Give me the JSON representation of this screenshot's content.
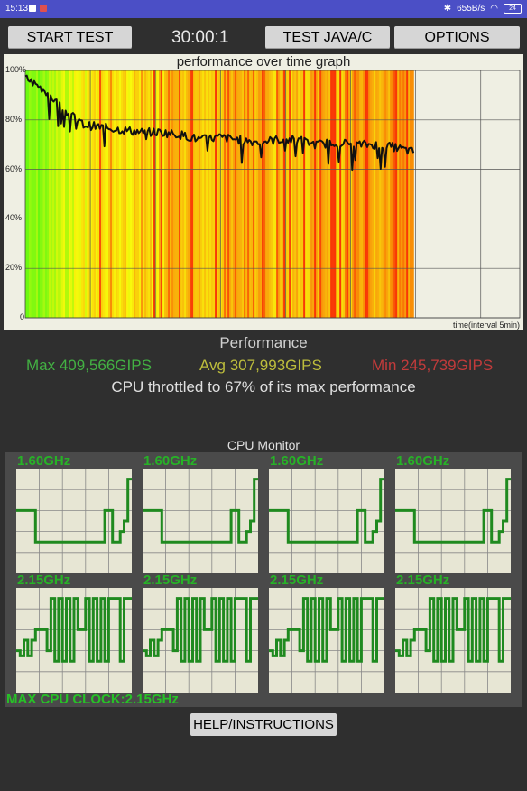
{
  "status_bar": {
    "time": "15:13",
    "net_speed": "655B/s",
    "battery": "24"
  },
  "toolbar": {
    "start_label": "START TEST",
    "timer": "30:00:1",
    "java_label": "TEST JAVA/C",
    "options_label": "OPTIONS"
  },
  "graph": {
    "title": "performance over time graph",
    "x_label": "time(interval 5min)",
    "y_ticks": [
      "100%",
      "80%",
      "60%",
      "40%",
      "20%",
      "0"
    ]
  },
  "chart_data": {
    "type": "line",
    "title": "performance over time graph",
    "xlabel": "time(interval 5min)",
    "ylim": [
      0,
      100
    ],
    "grid": true,
    "x_interval_minutes": 5,
    "x": [
      0,
      0.05,
      0.1,
      0.15,
      0.2,
      0.25,
      0.3,
      0.35,
      0.4,
      0.45,
      0.5,
      0.55,
      0.6,
      0.65,
      0.7,
      0.75,
      0.8,
      0.85,
      0.9,
      0.95,
      1.0
    ],
    "values": [
      97,
      92,
      84,
      78,
      77,
      76,
      75,
      75,
      74,
      72,
      73,
      72,
      71,
      72,
      72,
      70,
      71,
      70,
      70,
      69,
      67
    ]
  },
  "performance": {
    "title": "Performance",
    "max": "Max 409,566GIPS",
    "avg": "Avg 307,993GIPS",
    "min": "Min 245,739GIPS",
    "throttle": "CPU throttled to 67% of its max performance",
    "colors": {
      "max": "#43b143",
      "avg": "#bdbd3c",
      "min": "#c23b3b"
    }
  },
  "cpu_monitor": {
    "title": "CPU Monitor",
    "cores": [
      {
        "freq": "1.60GHz",
        "pattern": [
          0.6,
          0.6,
          0.6,
          0.6,
          0.6,
          0.3,
          0.3,
          0.3,
          0.3,
          0.3,
          0.3,
          0.3,
          0.3,
          0.3,
          0.3,
          0.3,
          0.3,
          0.3,
          0.3,
          0.3,
          0.3,
          0.3,
          0.3,
          0.6,
          0.6,
          0.3,
          0.3,
          0.4,
          0.5,
          0.9
        ]
      },
      {
        "freq": "1.60GHz",
        "pattern": [
          0.6,
          0.6,
          0.6,
          0.6,
          0.6,
          0.3,
          0.3,
          0.3,
          0.3,
          0.3,
          0.3,
          0.3,
          0.3,
          0.3,
          0.3,
          0.3,
          0.3,
          0.3,
          0.3,
          0.3,
          0.3,
          0.3,
          0.3,
          0.6,
          0.6,
          0.3,
          0.3,
          0.4,
          0.5,
          0.9
        ]
      },
      {
        "freq": "1.60GHz",
        "pattern": [
          0.6,
          0.6,
          0.6,
          0.6,
          0.6,
          0.3,
          0.3,
          0.3,
          0.3,
          0.3,
          0.3,
          0.3,
          0.3,
          0.3,
          0.3,
          0.3,
          0.3,
          0.3,
          0.3,
          0.3,
          0.3,
          0.3,
          0.3,
          0.6,
          0.6,
          0.3,
          0.3,
          0.4,
          0.5,
          0.9
        ]
      },
      {
        "freq": "1.60GHz",
        "pattern": [
          0.6,
          0.6,
          0.6,
          0.6,
          0.6,
          0.3,
          0.3,
          0.3,
          0.3,
          0.3,
          0.3,
          0.3,
          0.3,
          0.3,
          0.3,
          0.3,
          0.3,
          0.3,
          0.3,
          0.3,
          0.3,
          0.3,
          0.3,
          0.6,
          0.6,
          0.3,
          0.3,
          0.4,
          0.5,
          0.9
        ]
      },
      {
        "freq": "2.15GHz",
        "pattern": [
          0.4,
          0.35,
          0.5,
          0.35,
          0.5,
          0.6,
          0.6,
          0.6,
          0.4,
          0.9,
          0.3,
          0.9,
          0.3,
          0.9,
          0.3,
          0.9,
          0.6,
          0.6,
          0.9,
          0.3,
          0.9,
          0.3,
          0.9,
          0.3,
          0.9,
          0.9,
          0.9,
          0.3,
          0.9,
          0.9
        ]
      },
      {
        "freq": "2.15GHz",
        "pattern": [
          0.4,
          0.35,
          0.5,
          0.35,
          0.5,
          0.6,
          0.6,
          0.6,
          0.4,
          0.9,
          0.3,
          0.9,
          0.3,
          0.9,
          0.3,
          0.9,
          0.6,
          0.6,
          0.9,
          0.3,
          0.9,
          0.3,
          0.9,
          0.3,
          0.9,
          0.9,
          0.9,
          0.3,
          0.9,
          0.9
        ]
      },
      {
        "freq": "2.15GHz",
        "pattern": [
          0.4,
          0.35,
          0.5,
          0.35,
          0.5,
          0.6,
          0.6,
          0.6,
          0.4,
          0.9,
          0.3,
          0.9,
          0.3,
          0.9,
          0.3,
          0.9,
          0.6,
          0.6,
          0.9,
          0.3,
          0.9,
          0.3,
          0.9,
          0.3,
          0.9,
          0.9,
          0.9,
          0.3,
          0.9,
          0.9
        ]
      },
      {
        "freq": "2.15GHz",
        "pattern": [
          0.4,
          0.35,
          0.5,
          0.35,
          0.5,
          0.6,
          0.6,
          0.6,
          0.4,
          0.9,
          0.3,
          0.9,
          0.3,
          0.9,
          0.3,
          0.9,
          0.6,
          0.6,
          0.9,
          0.3,
          0.9,
          0.3,
          0.9,
          0.3,
          0.9,
          0.9,
          0.9,
          0.3,
          0.9,
          0.9
        ]
      }
    ],
    "max_clock": "MAX CPU CLOCK:2.15GHz"
  },
  "help_label": "HELP/INSTRUCTIONS"
}
